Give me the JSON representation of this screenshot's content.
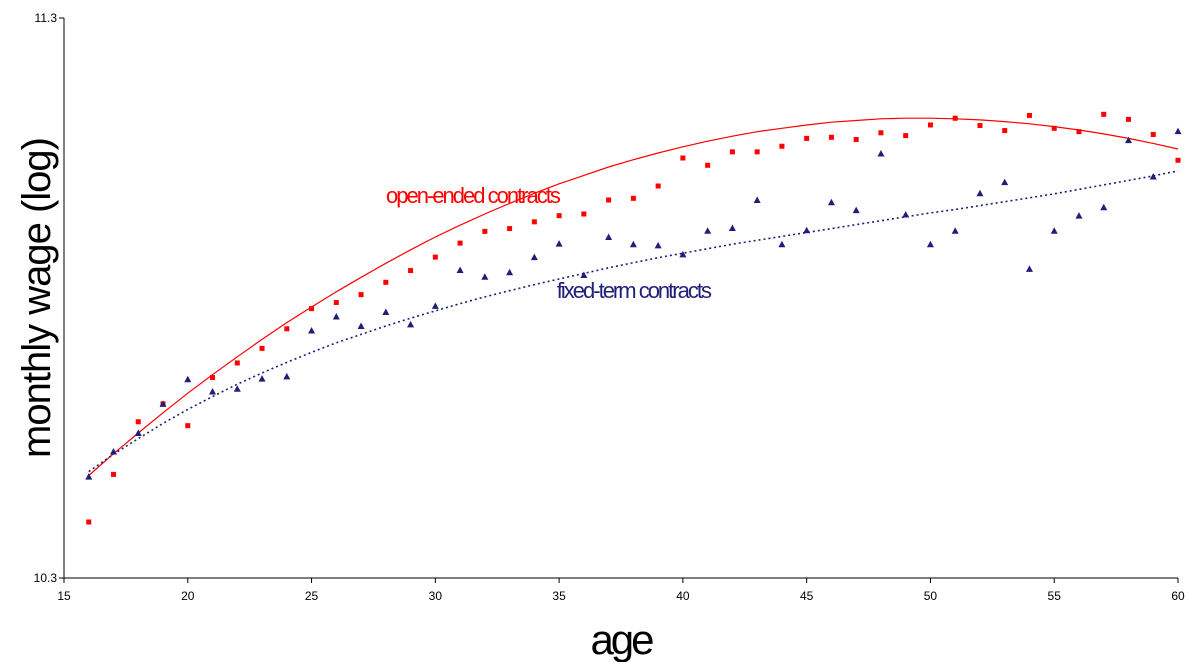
{
  "chart_data": {
    "type": "scatter",
    "title": "",
    "xlabel": "age",
    "ylabel": "monthly wage (log)",
    "xlim": [
      15,
      60
    ],
    "ylim": [
      10.3,
      11.3
    ],
    "x_ticks": [
      15,
      20,
      25,
      30,
      35,
      40,
      45,
      50,
      55,
      60
    ],
    "y_ticks": [
      "10.3",
      "11.3"
    ],
    "grid": false,
    "legend": "none",
    "series": [
      {
        "name": "open-ended contracts",
        "color": "#ff0000",
        "marker": "square",
        "trendline": "solid",
        "x": [
          16,
          17,
          18,
          19,
          20,
          21,
          22,
          23,
          24,
          25,
          26,
          27,
          28,
          29,
          30,
          31,
          32,
          33,
          34,
          35,
          36,
          37,
          38,
          39,
          40,
          41,
          42,
          43,
          44,
          45,
          46,
          47,
          48,
          49,
          50,
          51,
          52,
          53,
          54,
          55,
          56,
          57,
          58,
          59,
          60
        ],
        "y": [
          10.4,
          10.485,
          10.579,
          10.611,
          10.572,
          10.658,
          10.684,
          10.71,
          10.745,
          10.781,
          10.792,
          10.806,
          10.828,
          10.849,
          10.873,
          10.898,
          10.919,
          10.924,
          10.936,
          10.947,
          10.95,
          10.975,
          10.978,
          11.0,
          11.05,
          11.037,
          11.061,
          11.061,
          11.071,
          11.085,
          11.087,
          11.083,
          11.095,
          11.09,
          11.109,
          11.121,
          11.108,
          11.099,
          11.126,
          11.103,
          11.097,
          11.128,
          11.119,
          11.092,
          11.046
        ],
        "trend": [
          10.483,
          10.522,
          10.559,
          10.595,
          10.63,
          10.663,
          10.695,
          10.726,
          10.756,
          10.784,
          10.811,
          10.837,
          10.862,
          10.886,
          10.909,
          10.93,
          10.95,
          10.969,
          10.987,
          11.004,
          11.019,
          11.034,
          11.047,
          11.059,
          11.07,
          11.08,
          11.089,
          11.097,
          11.103,
          11.109,
          11.114,
          11.117,
          11.12,
          11.121,
          11.121,
          11.12,
          11.118,
          11.115,
          11.111,
          11.106,
          11.1,
          11.093,
          11.085,
          11.076,
          11.066
        ]
      },
      {
        "name": "fixed-term contracts",
        "color": "#1f1f7a",
        "marker": "triangle",
        "trendline": "dotted",
        "x": [
          16,
          17,
          18,
          19,
          20,
          21,
          22,
          23,
          24,
          25,
          26,
          27,
          28,
          29,
          30,
          31,
          32,
          33,
          34,
          35,
          36,
          37,
          38,
          39,
          40,
          41,
          42,
          43,
          44,
          45,
          46,
          47,
          48,
          49,
          50,
          51,
          52,
          53,
          54,
          55,
          56,
          57,
          58,
          59,
          60
        ],
        "y": [
          10.481,
          10.526,
          10.559,
          10.611,
          10.655,
          10.633,
          10.638,
          10.656,
          10.66,
          10.742,
          10.767,
          10.75,
          10.775,
          10.753,
          10.786,
          10.85,
          10.838,
          10.846,
          10.873,
          10.897,
          10.841,
          10.909,
          10.896,
          10.894,
          10.878,
          10.92,
          10.925,
          10.975,
          10.896,
          10.921,
          10.971,
          10.957,
          11.058,
          10.949,
          10.896,
          10.92,
          10.987,
          11.007,
          10.852,
          10.92,
          10.947,
          10.962,
          11.082,
          11.017,
          11.098
        ],
        "trend": [
          10.49,
          10.521,
          10.549,
          10.576,
          10.601,
          10.624,
          10.646,
          10.666,
          10.685,
          10.703,
          10.72,
          10.735,
          10.75,
          10.764,
          10.777,
          10.79,
          10.802,
          10.813,
          10.824,
          10.834,
          10.844,
          10.854,
          10.863,
          10.872,
          10.88,
          10.888,
          10.896,
          10.903,
          10.91,
          10.917,
          10.924,
          10.931,
          10.938,
          10.945,
          10.952,
          10.958,
          10.965,
          10.972,
          10.979,
          10.986,
          10.994,
          11.002,
          11.01,
          11.018,
          11.027
        ]
      }
    ],
    "annotations": [
      {
        "text": "open-ended contracts",
        "series": 0,
        "x": 31.5,
        "y": 10.97
      },
      {
        "text": "fixed-term contracts",
        "series": 1,
        "x": 38,
        "y": 10.8
      }
    ]
  }
}
